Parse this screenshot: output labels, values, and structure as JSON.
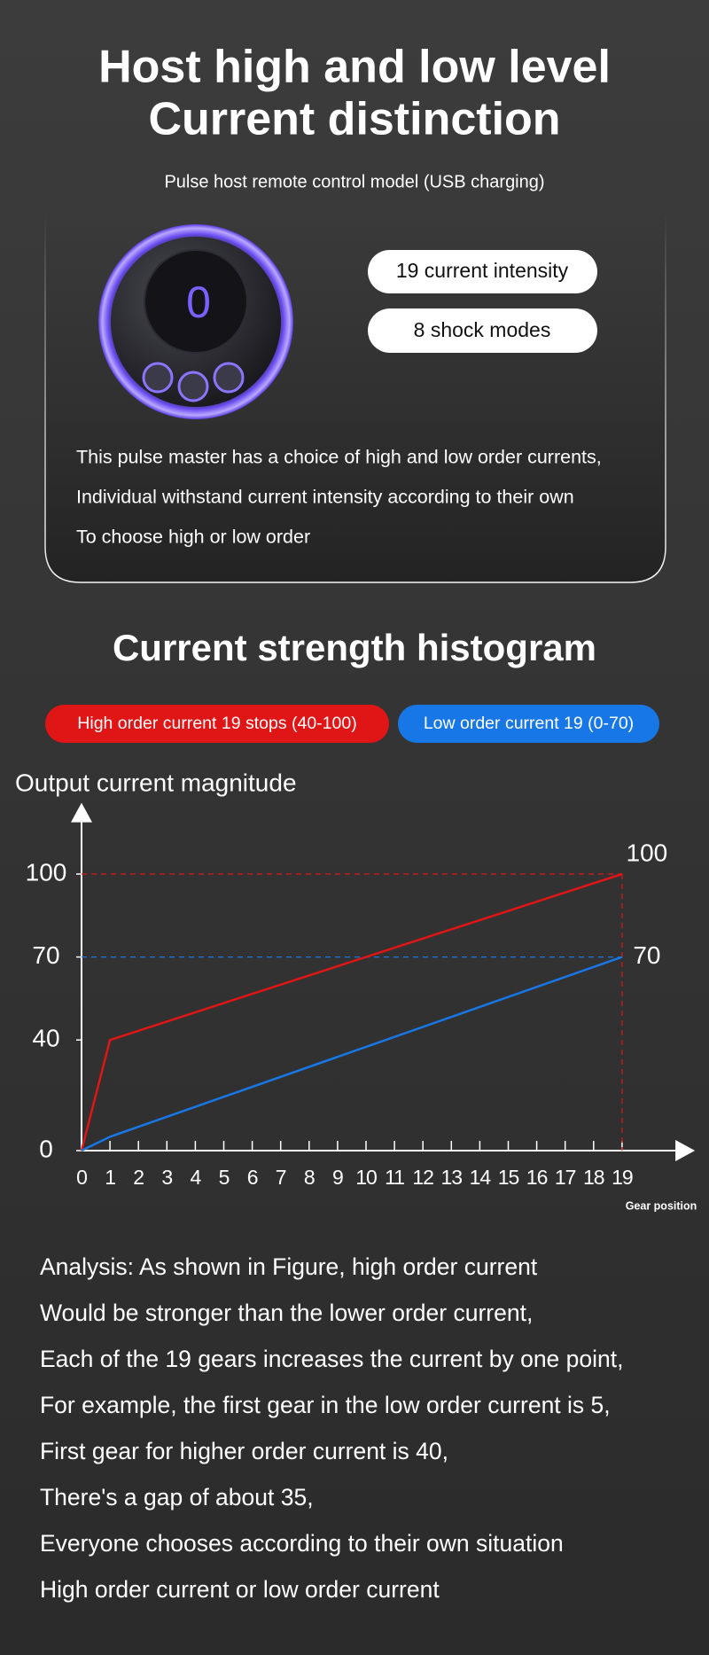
{
  "header": {
    "title_lines": [
      "Host high and low level",
      "Current distinction"
    ],
    "subtitle": "Pulse host remote control model (USB charging)"
  },
  "device": {
    "display": "0"
  },
  "badges": [
    "19 current intensity",
    "8 shock modes"
  ],
  "description": [
    "This pulse master has a choice of high and low order currents,",
    "Individual withstand current intensity according to their own",
    "To choose high or low order"
  ],
  "section_title": "Current strength histogram",
  "chart_data": {
    "type": "line",
    "x": [
      0,
      1,
      19
    ],
    "series": [
      {
        "name": "High order current 19 stops (40-100)",
        "color": "#e01515",
        "values": [
          0,
          40,
          100
        ]
      },
      {
        "name": "Low order current 19 (0-70)",
        "color": "#1877e6",
        "values": [
          0,
          5,
          70
        ]
      }
    ],
    "y_label": "Output current magnitude",
    "x_label": "Gear position",
    "xlim": [
      0,
      21
    ],
    "ylim": [
      0,
      120
    ],
    "xticks": [
      0,
      1,
      2,
      3,
      4,
      5,
      6,
      7,
      8,
      9,
      10,
      11,
      12,
      13,
      14,
      15,
      16,
      17,
      18,
      19
    ],
    "yticks": [
      0,
      40,
      70,
      100
    ],
    "reference_lines": true
  },
  "analysis": [
    "Analysis: As shown in Figure, high order current",
    "Would be stronger than the lower order current,",
    "Each of the 19 gears increases the current by one point,",
    "For example, the first gear in the low order current is 5,",
    "First gear for higher order current is 40,",
    "There's a gap of about 35,",
    "Everyone chooses according to their own situation",
    "High order current or low order current"
  ]
}
